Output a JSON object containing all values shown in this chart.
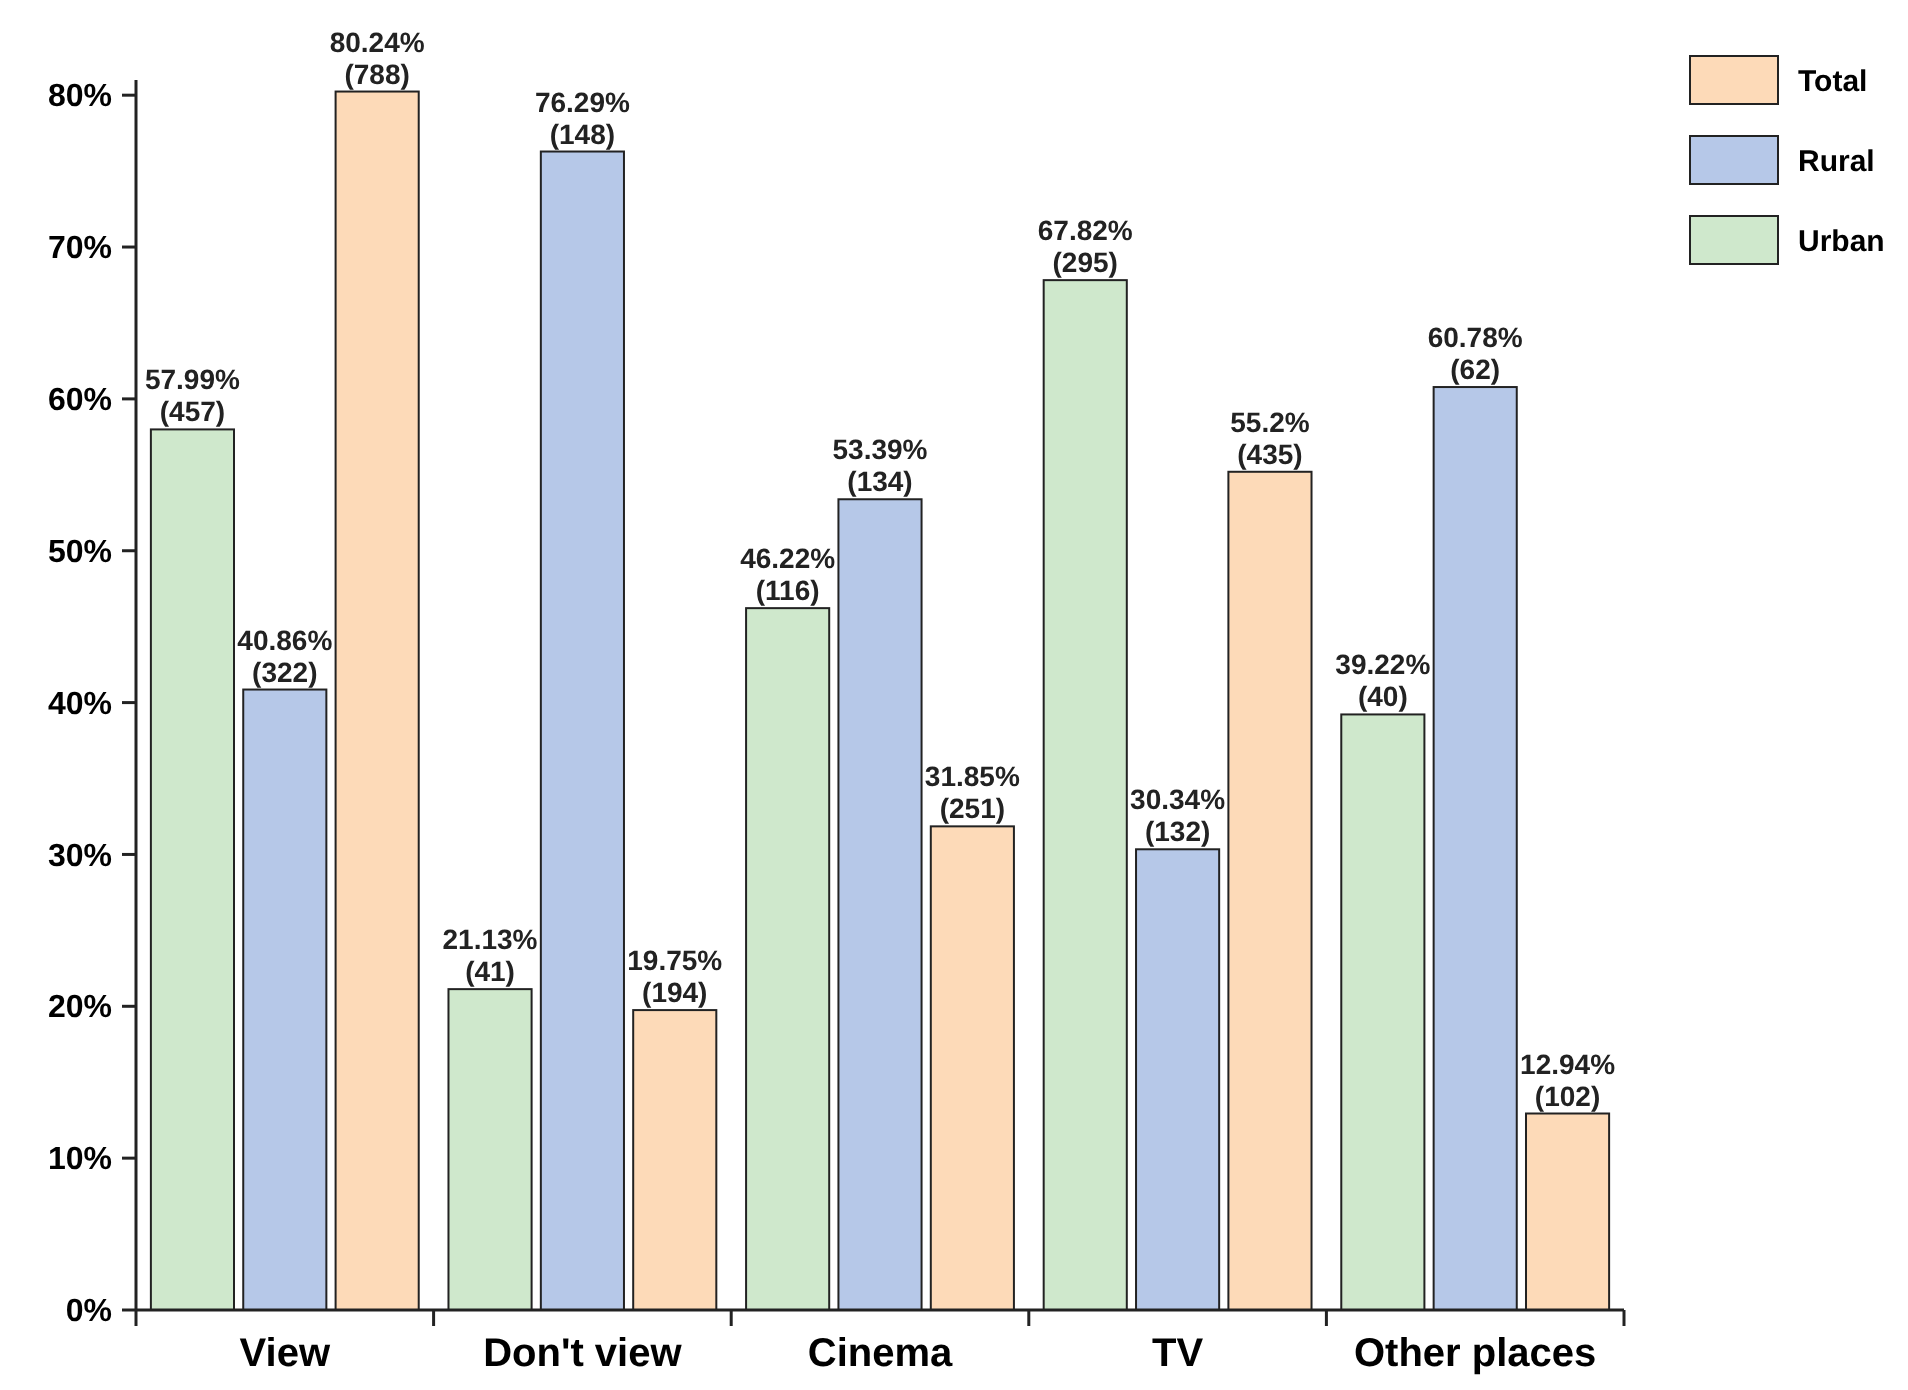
{
  "chart_data": {
    "type": "bar",
    "categories": [
      "View",
      "Don't view",
      "Cinema",
      "TV",
      "Other places"
    ],
    "series": [
      {
        "name": "Urban",
        "color": "#cfe8cc",
        "values": [
          57.99,
          21.13,
          46.22,
          67.82,
          39.22
        ],
        "value_labels": [
          "57.99%\n(457)",
          "21.13%\n(41)",
          "46.22%\n(116)",
          "67.82%\n(295)",
          "39.22%\n(40)"
        ]
      },
      {
        "name": "Rural",
        "color": "#b6c8e8",
        "values": [
          40.86,
          76.29,
          53.39,
          30.34,
          60.78
        ],
        "value_labels": [
          "40.86%\n(322)",
          "76.29%\n(148)",
          "53.39%\n(134)",
          "30.34%\n(132)",
          "60.78%\n(62)"
        ]
      },
      {
        "name": "Total",
        "color": "#fddab8",
        "values": [
          80.24,
          19.75,
          31.85,
          55.2,
          12.94
        ],
        "value_labels": [
          "80.24%\n(788)",
          "19.75%\n(194)",
          "31.85%\n(251)",
          "55.2%\n(435)",
          "12.94%\n(102)"
        ]
      }
    ],
    "ylim": [
      0,
      81
    ],
    "yticks": [
      {
        "value": 0,
        "label": "0%"
      },
      {
        "value": 10,
        "label": "10%"
      },
      {
        "value": 20,
        "label": "20%"
      },
      {
        "value": 30,
        "label": "30%"
      },
      {
        "value": 40,
        "label": "40%"
      },
      {
        "value": 50,
        "label": "50%"
      },
      {
        "value": 60,
        "label": "60%"
      },
      {
        "value": 70,
        "label": "70%"
      },
      {
        "value": 80,
        "label": "80%"
      }
    ],
    "grid": false,
    "legend": "top right"
  }
}
